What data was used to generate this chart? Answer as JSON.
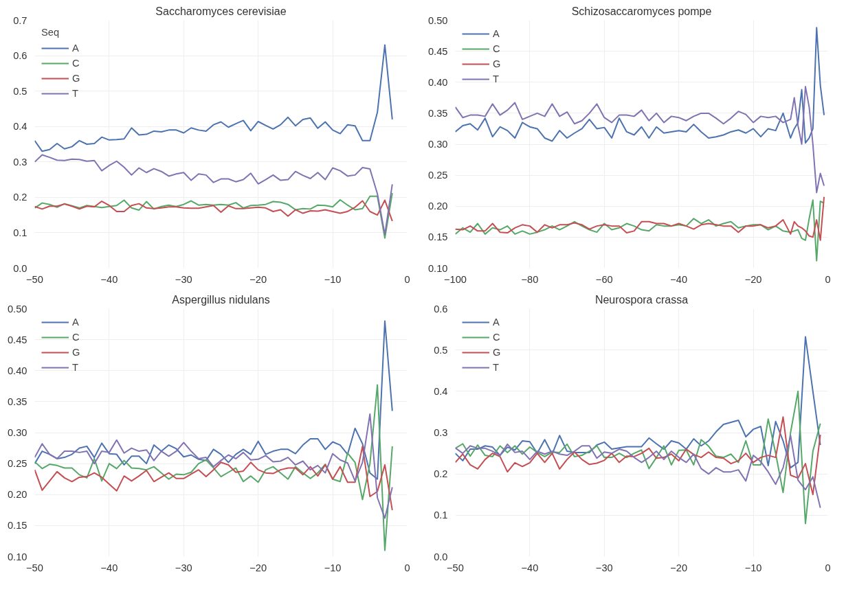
{
  "chart_data": [
    {
      "type": "line",
      "title": "Saccharomyces cerevisiae",
      "legend_title": "Seq",
      "legend": "top left",
      "grid": true,
      "xlim": [
        -50,
        0
      ],
      "xticks": [
        -50,
        -40,
        -30,
        -20,
        -10,
        0
      ],
      "ylim": [
        0,
        0.7
      ],
      "yticks": [
        {
          "value": 0,
          "label": "0.0"
        },
        0.1,
        0.2,
        0.3,
        0.4,
        0.5,
        0.6,
        0.7
      ],
      "x": [
        -50,
        -49,
        -48,
        -47,
        -46,
        -45,
        -44,
        -43,
        -42,
        -41,
        -40,
        -39,
        -38,
        -37,
        -36,
        -35,
        -34,
        -33,
        -32,
        -31,
        -30,
        -29,
        -28,
        -27,
        -26,
        -25,
        -24,
        -23,
        -22,
        -21,
        -20,
        -19,
        -18,
        -17,
        -16,
        -15,
        -14,
        -13,
        -12,
        -11,
        -10,
        -9,
        -8,
        -7,
        -6,
        -5,
        -4,
        -3,
        -2
      ],
      "series": [
        {
          "name": "A",
          "color": "#4c72b0",
          "values": [
            0.36,
            0.33,
            0.335,
            0.352,
            0.337,
            0.343,
            0.36,
            0.35,
            0.352,
            0.37,
            0.362,
            0.363,
            0.365,
            0.396,
            0.376,
            0.378,
            0.387,
            0.385,
            0.39,
            0.39,
            0.382,
            0.396,
            0.39,
            0.387,
            0.405,
            0.413,
            0.398,
            0.408,
            0.417,
            0.388,
            0.414,
            0.403,
            0.393,
            0.405,
            0.426,
            0.402,
            0.42,
            0.424,
            0.395,
            0.413,
            0.39,
            0.38,
            0.405,
            0.402,
            0.36,
            0.36,
            0.44,
            0.63,
            0.42
          ]
        },
        {
          "name": "C",
          "color": "#55a868",
          "values": [
            0.17,
            0.184,
            0.18,
            0.172,
            0.182,
            0.176,
            0.17,
            0.177,
            0.174,
            0.171,
            0.174,
            0.177,
            0.192,
            0.17,
            0.164,
            0.188,
            0.167,
            0.174,
            0.178,
            0.174,
            0.18,
            0.19,
            0.178,
            0.18,
            0.178,
            0.18,
            0.178,
            0.185,
            0.17,
            0.177,
            0.178,
            0.18,
            0.188,
            0.186,
            0.18,
            0.165,
            0.168,
            0.167,
            0.178,
            0.177,
            0.173,
            0.193,
            0.178,
            0.165,
            0.168,
            0.203,
            0.203,
            0.085,
            0.212
          ]
        },
        {
          "name": "G",
          "color": "#c44e52",
          "values": [
            0.174,
            0.167,
            0.175,
            0.175,
            0.181,
            0.175,
            0.167,
            0.175,
            0.173,
            0.189,
            0.177,
            0.16,
            0.16,
            0.177,
            0.182,
            0.17,
            0.168,
            0.17,
            0.173,
            0.173,
            0.17,
            0.169,
            0.169,
            0.173,
            0.177,
            0.158,
            0.176,
            0.168,
            0.168,
            0.17,
            0.172,
            0.17,
            0.16,
            0.165,
            0.147,
            0.165,
            0.155,
            0.162,
            0.161,
            0.165,
            0.16,
            0.155,
            0.16,
            0.172,
            0.19,
            0.16,
            0.15,
            0.192,
            0.133
          ]
        },
        {
          "name": "T",
          "color": "#8172b2",
          "values": [
            0.3,
            0.32,
            0.313,
            0.305,
            0.304,
            0.308,
            0.307,
            0.302,
            0.304,
            0.275,
            0.29,
            0.302,
            0.285,
            0.263,
            0.283,
            0.27,
            0.281,
            0.273,
            0.26,
            0.266,
            0.27,
            0.248,
            0.266,
            0.263,
            0.242,
            0.252,
            0.252,
            0.244,
            0.25,
            0.268,
            0.238,
            0.25,
            0.263,
            0.248,
            0.25,
            0.273,
            0.262,
            0.253,
            0.27,
            0.25,
            0.283,
            0.275,
            0.26,
            0.263,
            0.284,
            0.28,
            0.21,
            0.095,
            0.237
          ]
        }
      ]
    },
    {
      "type": "line",
      "title": "Schizosaccaromyces pompe",
      "legend": "top left",
      "grid": true,
      "xlim": [
        -100,
        0
      ],
      "xticks": [
        -100,
        -80,
        -60,
        -40,
        -20,
        0
      ],
      "ylim": [
        0.1,
        0.5
      ],
      "yticks": [
        {
          "value": 0.1,
          "label": "0.10"
        },
        0.15,
        {
          "value": 0.2,
          "label": "0.20"
        },
        0.25,
        {
          "value": 0.3,
          "label": "0.30"
        },
        0.35,
        {
          "value": 0.4,
          "label": "0.40"
        },
        0.45,
        {
          "value": 0.5,
          "label": "0.50"
        }
      ],
      "x": [
        -100,
        -98,
        -96,
        -94,
        -92,
        -90,
        -88,
        -86,
        -84,
        -82,
        -80,
        -78,
        -76,
        -74,
        -72,
        -70,
        -68,
        -66,
        -64,
        -62,
        -60,
        -58,
        -56,
        -54,
        -52,
        -50,
        -48,
        -46,
        -44,
        -42,
        -40,
        -38,
        -36,
        -34,
        -32,
        -30,
        -28,
        -26,
        -24,
        -22,
        -20,
        -18,
        -16,
        -14,
        -12,
        -10,
        -9,
        -8,
        -7,
        -6,
        -5,
        -4,
        -3,
        -2,
        -1
      ],
      "series": [
        {
          "name": "A",
          "color": "#4c72b0",
          "values": [
            0.32,
            0.33,
            0.333,
            0.323,
            0.342,
            0.312,
            0.328,
            0.322,
            0.31,
            0.335,
            0.328,
            0.325,
            0.31,
            0.305,
            0.322,
            0.31,
            0.318,
            0.325,
            0.34,
            0.325,
            0.327,
            0.31,
            0.342,
            0.32,
            0.315,
            0.328,
            0.31,
            0.328,
            0.318,
            0.32,
            0.322,
            0.32,
            0.332,
            0.32,
            0.31,
            0.312,
            0.315,
            0.32,
            0.323,
            0.318,
            0.325,
            0.312,
            0.325,
            0.322,
            0.35,
            0.31,
            0.325,
            0.335,
            0.388,
            0.302,
            0.31,
            0.325,
            0.488,
            0.395,
            0.347
          ]
        },
        {
          "name": "C",
          "color": "#55a868",
          "values": [
            0.155,
            0.165,
            0.158,
            0.172,
            0.155,
            0.165,
            0.162,
            0.168,
            0.155,
            0.16,
            0.155,
            0.158,
            0.162,
            0.168,
            0.162,
            0.168,
            0.175,
            0.168,
            0.162,
            0.158,
            0.172,
            0.162,
            0.165,
            0.172,
            0.168,
            0.162,
            0.16,
            0.17,
            0.168,
            0.168,
            0.17,
            0.168,
            0.18,
            0.172,
            0.178,
            0.168,
            0.172,
            0.175,
            0.165,
            0.168,
            0.17,
            0.17,
            0.162,
            0.168,
            0.16,
            0.158,
            0.16,
            0.162,
            0.148,
            0.145,
            0.18,
            0.21,
            0.112,
            0.208,
            0.205
          ]
        },
        {
          "name": "G",
          "color": "#c44e52",
          "values": [
            0.163,
            0.162,
            0.168,
            0.16,
            0.16,
            0.172,
            0.158,
            0.157,
            0.165,
            0.17,
            0.168,
            0.158,
            0.17,
            0.165,
            0.17,
            0.17,
            0.173,
            0.17,
            0.163,
            0.168,
            0.17,
            0.168,
            0.168,
            0.157,
            0.16,
            0.175,
            0.175,
            0.172,
            0.172,
            0.168,
            0.172,
            0.168,
            0.163,
            0.17,
            0.172,
            0.17,
            0.168,
            0.168,
            0.158,
            0.168,
            0.168,
            0.17,
            0.165,
            0.168,
            0.178,
            0.155,
            0.175,
            0.168,
            0.165,
            0.16,
            0.152,
            0.15,
            0.178,
            0.145,
            0.215
          ]
        },
        {
          "name": "T",
          "color": "#8172b2",
          "values": [
            0.36,
            0.343,
            0.347,
            0.347,
            0.345,
            0.365,
            0.347,
            0.355,
            0.367,
            0.34,
            0.345,
            0.35,
            0.345,
            0.365,
            0.345,
            0.352,
            0.333,
            0.338,
            0.35,
            0.365,
            0.343,
            0.335,
            0.347,
            0.347,
            0.345,
            0.355,
            0.338,
            0.35,
            0.335,
            0.345,
            0.343,
            0.338,
            0.345,
            0.35,
            0.35,
            0.342,
            0.333,
            0.342,
            0.353,
            0.348,
            0.335,
            0.345,
            0.343,
            0.345,
            0.335,
            0.34,
            0.375,
            0.33,
            0.3,
            0.393,
            0.36,
            0.3,
            0.222,
            0.253,
            0.233
          ]
        }
      ]
    },
    {
      "type": "line",
      "title": "Aspergillus nidulans",
      "legend": "top left",
      "grid": true,
      "xlim": [
        -50,
        0
      ],
      "xticks": [
        -50,
        -40,
        -30,
        -20,
        -10,
        0
      ],
      "ylim": [
        0.1,
        0.5
      ],
      "yticks": [
        {
          "value": 0.1,
          "label": "0.10"
        },
        0.15,
        {
          "value": 0.2,
          "label": "0.20"
        },
        0.25,
        {
          "value": 0.3,
          "label": "0.30"
        },
        0.35,
        {
          "value": 0.4,
          "label": "0.40"
        },
        0.45,
        {
          "value": 0.5,
          "label": "0.50"
        }
      ],
      "x": [
        -50,
        -49,
        -48,
        -47,
        -46,
        -45,
        -44,
        -43,
        -42,
        -41,
        -40,
        -39,
        -38,
        -37,
        -36,
        -35,
        -34,
        -33,
        -32,
        -31,
        -30,
        -29,
        -28,
        -27,
        -26,
        -25,
        -24,
        -23,
        -22,
        -21,
        -20,
        -19,
        -18,
        -17,
        -16,
        -15,
        -14,
        -13,
        -12,
        -11,
        -10,
        -9,
        -8,
        -7,
        -6,
        -5,
        -4,
        -3,
        -2
      ],
      "series": [
        {
          "name": "A",
          "color": "#4c72b0",
          "values": [
            0.25,
            0.27,
            0.265,
            0.258,
            0.26,
            0.265,
            0.275,
            0.278,
            0.26,
            0.283,
            0.266,
            0.265,
            0.248,
            0.262,
            0.262,
            0.25,
            0.28,
            0.27,
            0.28,
            0.274,
            0.261,
            0.264,
            0.257,
            0.255,
            0.273,
            0.265,
            0.252,
            0.265,
            0.273,
            0.265,
            0.286,
            0.265,
            0.27,
            0.273,
            0.273,
            0.266,
            0.28,
            0.29,
            0.29,
            0.273,
            0.285,
            0.28,
            0.265,
            0.307,
            0.282,
            0.235,
            0.225,
            0.48,
            0.335
          ]
        },
        {
          "name": "C",
          "color": "#55a868",
          "values": [
            0.253,
            0.242,
            0.249,
            0.247,
            0.243,
            0.243,
            0.232,
            0.227,
            0.258,
            0.222,
            0.25,
            0.242,
            0.255,
            0.243,
            0.242,
            0.24,
            0.245,
            0.235,
            0.225,
            0.233,
            0.232,
            0.236,
            0.25,
            0.256,
            0.243,
            0.229,
            0.236,
            0.243,
            0.221,
            0.23,
            0.22,
            0.24,
            0.245,
            0.235,
            0.225,
            0.245,
            0.235,
            0.226,
            0.235,
            0.249,
            0.225,
            0.221,
            0.267,
            0.252,
            0.192,
            0.25,
            0.377,
            0.11,
            0.278
          ]
        },
        {
          "name": "G",
          "color": "#c44e52",
          "values": [
            0.24,
            0.207,
            0.222,
            0.237,
            0.227,
            0.221,
            0.228,
            0.229,
            0.235,
            0.228,
            0.217,
            0.206,
            0.23,
            0.222,
            0.23,
            0.239,
            0.221,
            0.228,
            0.235,
            0.226,
            0.226,
            0.233,
            0.24,
            0.229,
            0.24,
            0.252,
            0.248,
            0.236,
            0.238,
            0.252,
            0.24,
            0.235,
            0.234,
            0.24,
            0.243,
            0.243,
            0.232,
            0.245,
            0.23,
            0.248,
            0.225,
            0.245,
            0.22,
            0.22,
            0.278,
            0.197,
            0.205,
            0.248,
            0.175
          ]
        },
        {
          "name": "T",
          "color": "#8172b2",
          "values": [
            0.26,
            0.282,
            0.265,
            0.258,
            0.27,
            0.27,
            0.268,
            0.27,
            0.25,
            0.27,
            0.268,
            0.288,
            0.267,
            0.275,
            0.27,
            0.272,
            0.255,
            0.27,
            0.262,
            0.27,
            0.284,
            0.27,
            0.258,
            0.26,
            0.245,
            0.255,
            0.264,
            0.258,
            0.268,
            0.256,
            0.257,
            0.263,
            0.253,
            0.254,
            0.26,
            0.248,
            0.254,
            0.24,
            0.247,
            0.235,
            0.266,
            0.256,
            0.251,
            0.222,
            0.252,
            0.33,
            0.195,
            0.162,
            0.212
          ]
        }
      ]
    },
    {
      "type": "line",
      "title": "Neurospora crassa",
      "legend": "top left",
      "grid": true,
      "xlim": [
        -50,
        0
      ],
      "xticks": [
        -50,
        -40,
        -30,
        -20,
        -10,
        0
      ],
      "ylim": [
        0,
        0.6
      ],
      "yticks": [
        {
          "value": 0,
          "label": "0.0"
        },
        0.1,
        0.2,
        0.3,
        0.4,
        0.5,
        0.6
      ],
      "x": [
        -50,
        -49,
        -48,
        -47,
        -46,
        -45,
        -44,
        -43,
        -42,
        -41,
        -40,
        -39,
        -38,
        -37,
        -36,
        -35,
        -34,
        -33,
        -32,
        -31,
        -30,
        -29,
        -28,
        -27,
        -26,
        -25,
        -24,
        -23,
        -22,
        -21,
        -20,
        -19,
        -18,
        -17,
        -16,
        -15,
        -14,
        -13,
        -12,
        -11,
        -10,
        -9,
        -8,
        -7,
        -6,
        -5,
        -4,
        -3,
        -2,
        -1
      ],
      "series": [
        {
          "name": "A",
          "color": "#4c72b0",
          "values": [
            0.25,
            0.232,
            0.26,
            0.26,
            0.268,
            0.265,
            0.245,
            0.265,
            0.258,
            0.28,
            0.278,
            0.25,
            0.283,
            0.248,
            0.293,
            0.255,
            0.252,
            0.252,
            0.252,
            0.27,
            0.277,
            0.26,
            0.263,
            0.266,
            0.266,
            0.266,
            0.287,
            0.273,
            0.26,
            0.28,
            0.275,
            0.26,
            0.285,
            0.268,
            0.28,
            0.302,
            0.32,
            0.325,
            0.33,
            0.29,
            0.308,
            0.315,
            0.22,
            0.327,
            0.28,
            0.215,
            0.228,
            0.532,
            0.4,
            0.27
          ]
        },
        {
          "name": "C",
          "color": "#55a868",
          "values": [
            0.262,
            0.273,
            0.243,
            0.27,
            0.245,
            0.242,
            0.268,
            0.252,
            0.268,
            0.248,
            0.265,
            0.252,
            0.242,
            0.253,
            0.252,
            0.272,
            0.242,
            0.245,
            0.255,
            0.268,
            0.24,
            0.24,
            0.25,
            0.24,
            0.25,
            0.258,
            0.213,
            0.24,
            0.268,
            0.222,
            0.257,
            0.258,
            0.222,
            0.283,
            0.267,
            0.243,
            0.24,
            0.248,
            0.228,
            0.28,
            0.222,
            0.222,
            0.333,
            0.25,
            0.155,
            0.3,
            0.4,
            0.08,
            0.255,
            0.322
          ]
        },
        {
          "name": "G",
          "color": "#c44e52",
          "values": [
            0.228,
            0.248,
            0.222,
            0.212,
            0.235,
            0.25,
            0.242,
            0.205,
            0.227,
            0.218,
            0.227,
            0.25,
            0.228,
            0.25,
            0.212,
            0.235,
            0.253,
            0.235,
            0.223,
            0.226,
            0.233,
            0.25,
            0.228,
            0.243,
            0.242,
            0.25,
            0.262,
            0.238,
            0.24,
            0.248,
            0.232,
            0.26,
            0.247,
            0.24,
            0.253,
            0.24,
            0.238,
            0.225,
            0.232,
            0.25,
            0.228,
            0.24,
            0.245,
            0.24,
            0.338,
            0.197,
            0.19,
            0.225,
            0.15,
            0.295
          ]
        },
        {
          "name": "T",
          "color": "#8172b2",
          "values": [
            0.263,
            0.25,
            0.268,
            0.262,
            0.262,
            0.255,
            0.245,
            0.272,
            0.252,
            0.255,
            0.235,
            0.255,
            0.248,
            0.255,
            0.248,
            0.245,
            0.255,
            0.268,
            0.268,
            0.238,
            0.253,
            0.25,
            0.26,
            0.255,
            0.24,
            0.228,
            0.24,
            0.255,
            0.235,
            0.255,
            0.24,
            0.228,
            0.248,
            0.213,
            0.2,
            0.215,
            0.205,
            0.205,
            0.21,
            0.183,
            0.245,
            0.23,
            0.205,
            0.175,
            0.215,
            0.293,
            0.185,
            0.162,
            0.193,
            0.118
          ]
        }
      ]
    }
  ]
}
